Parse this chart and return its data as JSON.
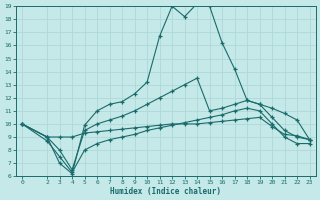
{
  "xlabel": "Humidex (Indice chaleur)",
  "xlim": [
    -0.5,
    23.5
  ],
  "ylim": [
    6,
    19
  ],
  "yticks": [
    6,
    7,
    8,
    9,
    10,
    11,
    12,
    13,
    14,
    15,
    16,
    17,
    18,
    19
  ],
  "xticks": [
    0,
    2,
    3,
    4,
    5,
    6,
    7,
    8,
    9,
    10,
    11,
    12,
    13,
    14,
    15,
    16,
    17,
    18,
    19,
    20,
    21,
    22,
    23
  ],
  "bg_color": "#c5e8e8",
  "line_color": "#1a6b6b",
  "grid_color": "#b0d8d8",
  "line1_x": [
    0,
    2,
    3,
    4,
    5,
    6,
    7,
    8,
    9,
    10,
    11,
    12,
    13,
    14,
    15,
    16,
    17,
    18,
    19,
    20,
    21,
    22,
    23
  ],
  "line1_y": [
    10.0,
    9.0,
    9.0,
    9.0,
    9.3,
    9.4,
    9.5,
    9.6,
    9.7,
    9.8,
    9.9,
    10.0,
    10.0,
    10.0,
    10.1,
    10.2,
    10.3,
    10.4,
    10.5,
    9.8,
    9.2,
    9.1,
    8.8
  ],
  "line2_x": [
    0,
    2,
    3,
    4,
    5,
    6,
    7,
    8,
    9,
    10,
    11,
    12,
    13,
    14,
    15,
    16,
    17,
    18,
    19,
    20,
    21,
    22,
    23
  ],
  "line2_y": [
    10.0,
    9.0,
    7.0,
    6.2,
    9.9,
    11.0,
    11.5,
    11.7,
    12.3,
    13.2,
    16.7,
    19.0,
    18.2,
    19.2,
    19.0,
    16.2,
    14.2,
    11.8,
    11.5,
    11.2,
    10.8,
    10.3,
    8.8
  ],
  "line3_x": [
    0,
    2,
    3,
    4,
    5,
    6,
    7,
    8,
    9,
    10,
    11,
    12,
    13,
    14,
    15,
    16,
    17,
    18,
    19,
    20,
    21,
    22,
    23
  ],
  "line3_y": [
    10.0,
    9.0,
    8.0,
    6.5,
    9.5,
    10.0,
    10.3,
    10.6,
    11.0,
    11.5,
    12.0,
    12.5,
    13.0,
    13.5,
    11.0,
    11.2,
    11.5,
    11.8,
    11.5,
    10.5,
    9.5,
    9.0,
    8.8
  ],
  "line4_x": [
    0,
    2,
    3,
    4,
    5,
    6,
    7,
    8,
    9,
    10,
    11,
    12,
    13,
    14,
    15,
    16,
    17,
    18,
    19,
    20,
    21,
    22,
    23
  ],
  "line4_y": [
    10.0,
    8.7,
    7.5,
    6.3,
    8.0,
    8.5,
    8.8,
    9.0,
    9.2,
    9.5,
    9.7,
    9.9,
    10.1,
    10.3,
    10.5,
    10.7,
    11.0,
    11.2,
    11.0,
    10.0,
    9.0,
    8.5,
    8.5
  ]
}
